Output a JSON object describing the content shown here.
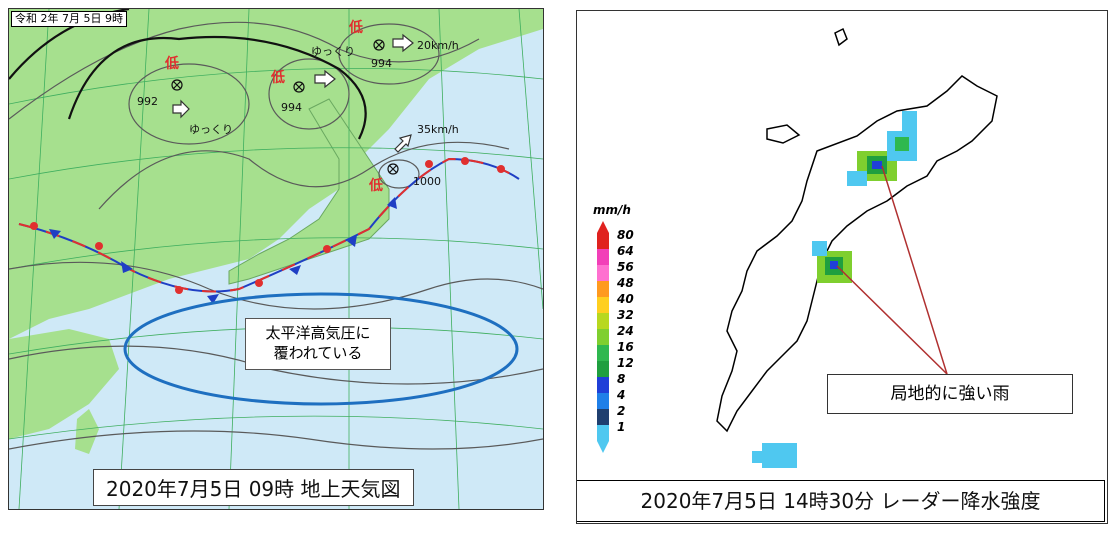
{
  "left_panel": {
    "timestamp": "令和 2年 7月 5日 9時",
    "caption": "2020年7月5日  09時  地上天気図",
    "low_symbol": "低",
    "lows": [
      {
        "pressure": "992",
        "motion": "ゆっくり"
      },
      {
        "pressure": "994",
        "motion": ""
      },
      {
        "pressure": "994",
        "motion": "ゆっくり",
        "speed": "20km/h"
      },
      {
        "pressure": "1000",
        "motion": "",
        "speed": "35km/h"
      }
    ],
    "pacific_high_label_line1": "太平洋高気圧に",
    "pacific_high_label_line2": "覆われている",
    "colors": {
      "sea": "#cfe9f7",
      "land": "#a6e08e",
      "front_warm": "#e0302f",
      "front_cold": "#1f3fc4",
      "high_ellipse": "#1e6fc0"
    }
  },
  "right_panel": {
    "caption": "2020年7月5日  14時30分  レーダー降水強度",
    "callout": "局地的に強い雨",
    "legend_unit": "mm/h",
    "legend": [
      {
        "label": "80",
        "color": "#e0221f"
      },
      {
        "label": "64",
        "color": "#f23fb8"
      },
      {
        "label": "56",
        "color": "#ff70d0"
      },
      {
        "label": "48",
        "color": "#ff9a1f"
      },
      {
        "label": "40",
        "color": "#ffcf1f"
      },
      {
        "label": "32",
        "color": "#b8d81f"
      },
      {
        "label": "24",
        "color": "#7fcf2f"
      },
      {
        "label": "16",
        "color": "#2fb84f"
      },
      {
        "label": "12",
        "color": "#1f9f3f"
      },
      {
        "label": "8",
        "color": "#1f3fd8"
      },
      {
        "label": "4",
        "color": "#1f7fe8"
      },
      {
        "label": "2",
        "color": "#1f3f6f"
      },
      {
        "label": "1",
        "color": "#4fc8f0"
      }
    ]
  }
}
